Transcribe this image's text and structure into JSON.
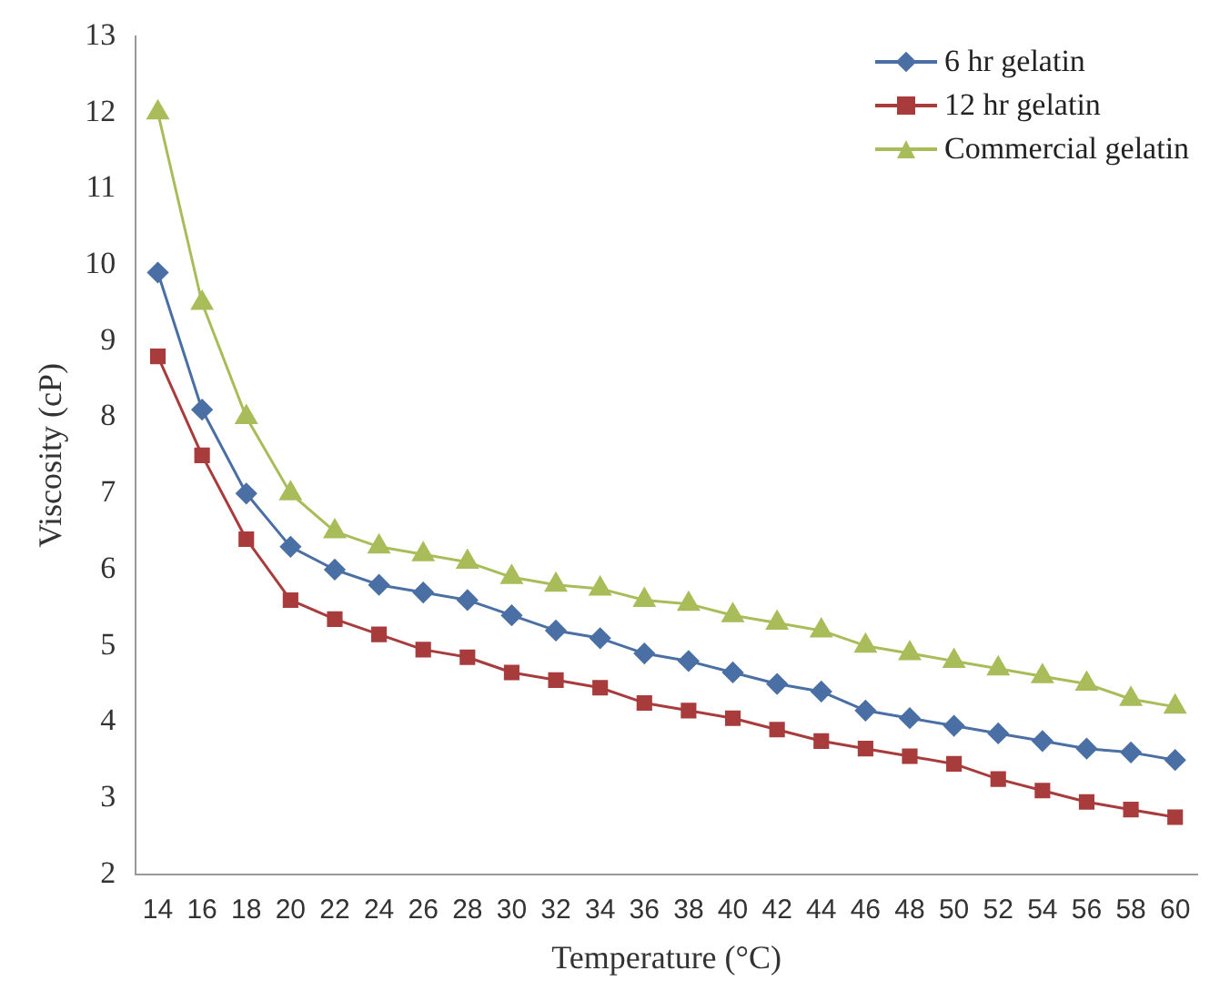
{
  "chart_data": {
    "type": "line",
    "xlabel": "Temperature (°C)",
    "ylabel": "Viscosity (cP)",
    "categories": [
      "14",
      "16",
      "18",
      "20",
      "22",
      "24",
      "26",
      "28",
      "30",
      "32",
      "34",
      "36",
      "38",
      "40",
      "42",
      "44",
      "46",
      "48",
      "50",
      "52",
      "54",
      "56",
      "58",
      "60"
    ],
    "series": [
      {
        "name": "6 hr gelatin",
        "color": "#4a6fa5",
        "marker": "diamond",
        "values": [
          9.9,
          8.1,
          7.0,
          6.3,
          6.0,
          5.8,
          5.7,
          5.6,
          5.4,
          5.2,
          5.1,
          4.9,
          4.8,
          4.65,
          4.5,
          4.4,
          4.15,
          4.05,
          3.95,
          3.85,
          3.75,
          3.65,
          3.6,
          3.5
        ]
      },
      {
        "name": "12 hr gelatin",
        "color": "#a83c3c",
        "marker": "square",
        "values": [
          8.8,
          7.5,
          6.4,
          5.6,
          5.35,
          5.15,
          4.95,
          4.85,
          4.65,
          4.55,
          4.45,
          4.25,
          4.15,
          4.05,
          3.9,
          3.75,
          3.65,
          3.55,
          3.45,
          3.25,
          3.1,
          2.95,
          2.85,
          2.75
        ]
      },
      {
        "name": "Commercial gelatin",
        "color": "#a8bd5a",
        "marker": "triangle",
        "values": [
          12.0,
          9.5,
          8.0,
          7.0,
          6.5,
          6.3,
          6.2,
          6.1,
          5.9,
          5.8,
          5.75,
          5.6,
          5.55,
          5.4,
          5.3,
          5.2,
          5.0,
          4.9,
          4.8,
          4.7,
          4.6,
          4.5,
          4.3,
          4.2
        ]
      }
    ],
    "ylim": [
      2,
      13
    ],
    "yticks": [
      2,
      3,
      4,
      5,
      6,
      7,
      8,
      9,
      10,
      11,
      12,
      13
    ],
    "grid": false,
    "legend": "top right"
  }
}
